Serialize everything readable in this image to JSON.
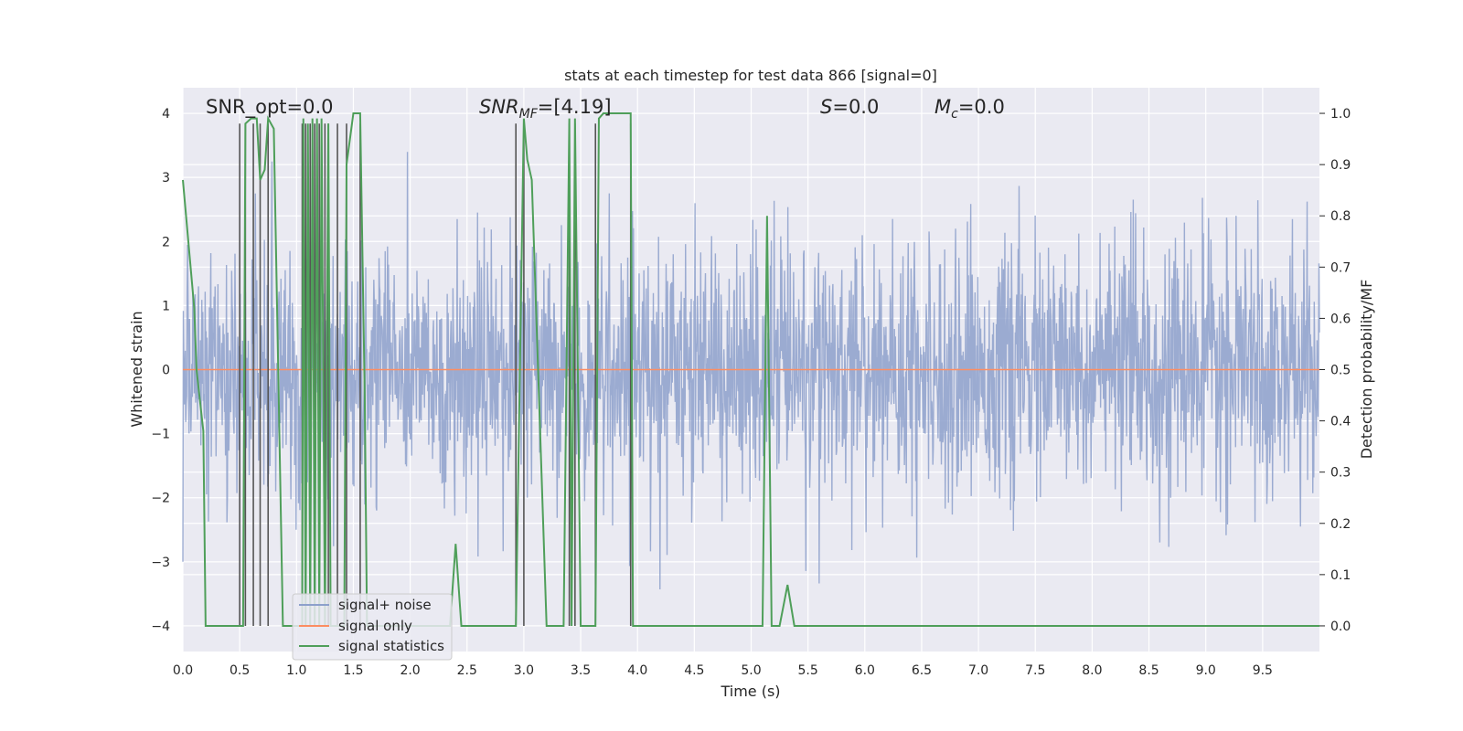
{
  "chart_data": {
    "type": "line",
    "title": "stats at each timestep for test data 866 [signal=0]",
    "xlabel": "Time (s)",
    "ylabel": "Whitened strain",
    "ylabel_right": "Detection probability/MF",
    "xlim": [
      0,
      10
    ],
    "ylim": [
      -4.4,
      4.4
    ],
    "ylim_right": [
      -0.05,
      1.05
    ],
    "x_ticks": [
      0.0,
      0.5,
      1.0,
      1.5,
      2.0,
      2.5,
      3.0,
      3.5,
      4.0,
      4.5,
      5.0,
      5.5,
      6.0,
      6.5,
      7.0,
      7.5,
      8.0,
      8.5,
      9.0,
      9.5
    ],
    "x_tick_labels": [
      "0.0",
      "0.5",
      "1.0",
      "1.5",
      "2.0",
      "2.5",
      "3.0",
      "3.5",
      "4.0",
      "4.5",
      "5.0",
      "5.5",
      "6.0",
      "6.5",
      "7.0",
      "7.5",
      "8.0",
      "8.5",
      "9.0",
      "9.5"
    ],
    "y_ticks": [
      4,
      3,
      2,
      1,
      0,
      -1,
      -2,
      -3,
      -4
    ],
    "y_tick_labels": [
      "4",
      "3",
      "2",
      "1",
      "0",
      "−1",
      "−2",
      "−3",
      "−4"
    ],
    "y_ticks_right": [
      1.0,
      0.9,
      0.8,
      0.7,
      0.6,
      0.5,
      0.4,
      0.3,
      0.2,
      0.1,
      0.0
    ],
    "y_tick_labels_right": [
      "1.0",
      "0.9",
      "0.8",
      "0.7",
      "0.6",
      "0.5",
      "0.4",
      "0.3",
      "0.2",
      "0.1",
      "0.0"
    ],
    "grid": true,
    "legend_placement": "lower-left",
    "annotations": {
      "snr_opt": "SNR_opt=0.0",
      "snr_mf_base": "SNR",
      "snr_mf_sub": "MF",
      "snr_mf_value": "=[4.19]",
      "s_base": "S",
      "s_value": "=0.0",
      "mc_base": "M",
      "mc_sub": "c",
      "mc_value": "=0.0"
    },
    "series": [
      {
        "name": "signal+ noise",
        "color": "#8da0cb",
        "noise_band": {
          "typical_min": -1.7,
          "typical_max": 1.7,
          "peak_min": -3.8,
          "peak_max": 4.0
        }
      },
      {
        "name": "signal only",
        "color": "#fc8d62",
        "x": [
          0,
          10
        ],
        "y": [
          0,
          0
        ]
      },
      {
        "name": "signal statistics",
        "color": "#4f9f5a",
        "axis": "right",
        "x": [
          0.0,
          0.1,
          0.12,
          0.18,
          0.2,
          0.5,
          0.53,
          0.55,
          0.6,
          0.62,
          0.65,
          0.68,
          0.72,
          0.75,
          0.8,
          0.88,
          1.05,
          1.06,
          1.08,
          1.1,
          1.12,
          1.14,
          1.16,
          1.18,
          1.2,
          1.22,
          1.25,
          1.28,
          1.3,
          1.32,
          1.36,
          1.42,
          1.44,
          1.5,
          1.56,
          1.6,
          1.62,
          1.98,
          2.0,
          2.05,
          2.15,
          2.35,
          2.4,
          2.45,
          2.5,
          2.88,
          2.9,
          2.93,
          3.0,
          3.03,
          3.07,
          3.2,
          3.35,
          3.4,
          3.42,
          3.45,
          3.5,
          3.52,
          3.58,
          3.63,
          3.66,
          3.7,
          3.75,
          3.94,
          3.96,
          4.0,
          5.06,
          5.1,
          5.14,
          5.18,
          5.25,
          5.32,
          5.38,
          10.0
        ],
        "y": [
          0.87,
          0.62,
          0.5,
          0.38,
          0.0,
          0.0,
          0.0,
          0.98,
          0.99,
          0.99,
          0.99,
          0.87,
          0.89,
          0.99,
          0.97,
          0.0,
          0.0,
          0.99,
          0.0,
          0.98,
          0.0,
          0.99,
          0.0,
          0.99,
          0.0,
          0.99,
          0.0,
          0.98,
          0.0,
          0.0,
          0.0,
          0.0,
          0.9,
          1.0,
          1.0,
          0.45,
          0.0,
          0.0,
          0.0,
          0.0,
          0.0,
          0.0,
          0.16,
          0.0,
          0.0,
          0.0,
          0.0,
          0.0,
          0.99,
          0.91,
          0.87,
          0.0,
          0.0,
          0.99,
          0.0,
          0.99,
          0.0,
          0.0,
          0.0,
          0.0,
          0.99,
          1.0,
          1.0,
          1.0,
          0.0,
          0.0,
          0.0,
          0.0,
          0.8,
          0.0,
          0.0,
          0.08,
          0.0,
          0.0
        ]
      },
      {
        "name": "",
        "color": "#555555",
        "kind": "vertical-lines",
        "x": [
          0.5,
          0.55,
          0.62,
          0.68,
          0.75,
          1.05,
          1.08,
          1.12,
          1.16,
          1.2,
          1.25,
          1.28,
          1.36,
          1.44,
          1.56,
          2.93,
          3.0,
          3.4,
          3.45,
          3.63,
          3.94
        ],
        "y_top": [
          0.98,
          0.98,
          0.98,
          0.98,
          0.98,
          0.98,
          0.98,
          0.98,
          0.98,
          0.98,
          0.98,
          0.98,
          0.98,
          0.98,
          0.98,
          0.98,
          0.98,
          0.98,
          0.98,
          0.98,
          0.98
        ]
      }
    ]
  }
}
